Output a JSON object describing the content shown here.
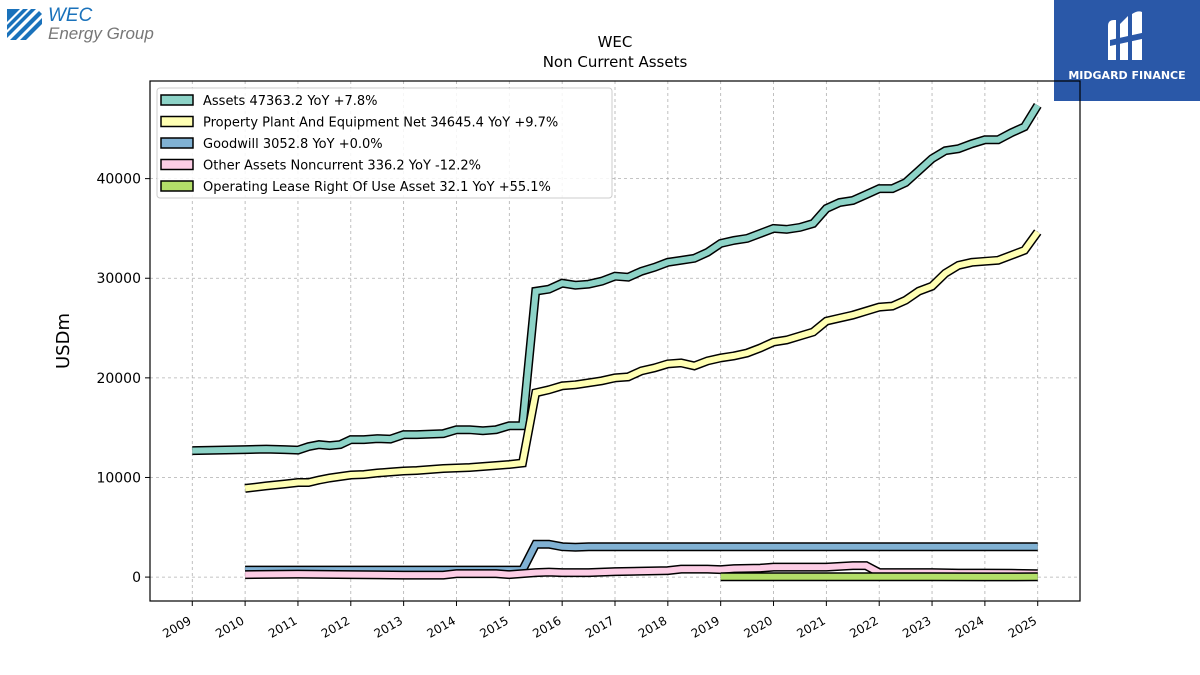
{
  "logos": {
    "wec_line1": "WEC",
    "wec_line2": "Energy Group",
    "midgard": "MIDGARD FINANCE"
  },
  "chart_data": {
    "type": "line",
    "title": "WEC",
    "subtitle": "Non Current  Assets",
    "ylabel": "USDm",
    "xlabel": "",
    "xlim": [
      2008.2,
      2025.8
    ],
    "ylim": [
      -2400,
      49800
    ],
    "yticks": [
      0,
      10000,
      20000,
      30000,
      40000
    ],
    "xticks": [
      "2009",
      "2010",
      "2011",
      "2012",
      "2013",
      "2014",
      "2015",
      "2016",
      "2017",
      "2018",
      "2019",
      "2020",
      "2021",
      "2022",
      "2023",
      "2024",
      "2025"
    ],
    "grid": true,
    "legend_position": "top-left",
    "series": [
      {
        "name": "Assets  47363.2 YoY +7.8%",
        "color": "#8dd3c7",
        "points": [
          [
            2009.0,
            12700
          ],
          [
            2009.5,
            12750
          ],
          [
            2010.0,
            12800
          ],
          [
            2010.4,
            12850
          ],
          [
            2010.75,
            12800
          ],
          [
            2011.0,
            12750
          ],
          [
            2011.2,
            13100
          ],
          [
            2011.4,
            13300
          ],
          [
            2011.6,
            13200
          ],
          [
            2011.8,
            13300
          ],
          [
            2012.0,
            13800
          ],
          [
            2012.25,
            13800
          ],
          [
            2012.5,
            13900
          ],
          [
            2012.75,
            13850
          ],
          [
            2013.0,
            14300
          ],
          [
            2013.25,
            14300
          ],
          [
            2013.5,
            14350
          ],
          [
            2013.75,
            14400
          ],
          [
            2014.0,
            14800
          ],
          [
            2014.25,
            14800
          ],
          [
            2014.5,
            14700
          ],
          [
            2014.75,
            14800
          ],
          [
            2015.0,
            15200
          ],
          [
            2015.25,
            15200
          ],
          [
            2015.5,
            28700
          ],
          [
            2015.75,
            28900
          ],
          [
            2016.0,
            29500
          ],
          [
            2016.25,
            29300
          ],
          [
            2016.5,
            29400
          ],
          [
            2016.75,
            29700
          ],
          [
            2017.0,
            30200
          ],
          [
            2017.25,
            30100
          ],
          [
            2017.5,
            30700
          ],
          [
            2017.75,
            31100
          ],
          [
            2018.0,
            31600
          ],
          [
            2018.25,
            31800
          ],
          [
            2018.5,
            32000
          ],
          [
            2018.75,
            32600
          ],
          [
            2019.0,
            33500
          ],
          [
            2019.25,
            33800
          ],
          [
            2019.5,
            34000
          ],
          [
            2019.75,
            34500
          ],
          [
            2020.0,
            35000
          ],
          [
            2020.25,
            34900
          ],
          [
            2020.5,
            35100
          ],
          [
            2020.75,
            35500
          ],
          [
            2021.0,
            37000
          ],
          [
            2021.25,
            37600
          ],
          [
            2021.5,
            37800
          ],
          [
            2021.75,
            38400
          ],
          [
            2022.0,
            39000
          ],
          [
            2022.25,
            39000
          ],
          [
            2022.5,
            39600
          ],
          [
            2022.75,
            40800
          ],
          [
            2023.0,
            42000
          ],
          [
            2023.25,
            42800
          ],
          [
            2023.5,
            43000
          ],
          [
            2023.75,
            43500
          ],
          [
            2024.0,
            43900
          ],
          [
            2024.25,
            43900
          ],
          [
            2024.5,
            44600
          ],
          [
            2024.75,
            45200
          ],
          [
            2025.0,
            47363
          ]
        ]
      },
      {
        "name": "Property Plant And Equipment Net  34645.4 YoY +9.7%",
        "color": "#ffffb3",
        "points": [
          [
            2010.0,
            8900
          ],
          [
            2010.4,
            9150
          ],
          [
            2010.75,
            9350
          ],
          [
            2011.0,
            9500
          ],
          [
            2011.2,
            9500
          ],
          [
            2011.4,
            9750
          ],
          [
            2011.6,
            9950
          ],
          [
            2011.8,
            10100
          ],
          [
            2012.0,
            10250
          ],
          [
            2012.25,
            10300
          ],
          [
            2012.5,
            10450
          ],
          [
            2012.75,
            10550
          ],
          [
            2013.0,
            10650
          ],
          [
            2013.25,
            10700
          ],
          [
            2013.5,
            10800
          ],
          [
            2013.75,
            10900
          ],
          [
            2014.0,
            10950
          ],
          [
            2014.25,
            11000
          ],
          [
            2014.5,
            11100
          ],
          [
            2014.75,
            11200
          ],
          [
            2015.0,
            11300
          ],
          [
            2015.25,
            11450
          ],
          [
            2015.5,
            18500
          ],
          [
            2015.75,
            18800
          ],
          [
            2016.0,
            19200
          ],
          [
            2016.25,
            19300
          ],
          [
            2016.5,
            19500
          ],
          [
            2016.75,
            19700
          ],
          [
            2017.0,
            20000
          ],
          [
            2017.25,
            20100
          ],
          [
            2017.5,
            20700
          ],
          [
            2017.75,
            21000
          ],
          [
            2018.0,
            21400
          ],
          [
            2018.25,
            21500
          ],
          [
            2018.5,
            21200
          ],
          [
            2018.75,
            21700
          ],
          [
            2019.0,
            22000
          ],
          [
            2019.25,
            22200
          ],
          [
            2019.5,
            22500
          ],
          [
            2019.75,
            23000
          ],
          [
            2020.0,
            23600
          ],
          [
            2020.25,
            23800
          ],
          [
            2020.5,
            24200
          ],
          [
            2020.75,
            24600
          ],
          [
            2021.0,
            25700
          ],
          [
            2021.25,
            26000
          ],
          [
            2021.5,
            26300
          ],
          [
            2021.75,
            26700
          ],
          [
            2022.0,
            27100
          ],
          [
            2022.25,
            27200
          ],
          [
            2022.5,
            27800
          ],
          [
            2022.75,
            28700
          ],
          [
            2023.0,
            29200
          ],
          [
            2023.25,
            30500
          ],
          [
            2023.5,
            31300
          ],
          [
            2023.75,
            31600
          ],
          [
            2024.0,
            31700
          ],
          [
            2024.25,
            31800
          ],
          [
            2024.5,
            32300
          ],
          [
            2024.75,
            32800
          ],
          [
            2025.0,
            34645
          ]
        ]
      },
      {
        "name": "Goodwill  3052.8 YoY +0.0%",
        "color": "#80b1d3",
        "points": [
          [
            2010.0,
            700
          ],
          [
            2015.25,
            700
          ],
          [
            2015.5,
            3300
          ],
          [
            2015.75,
            3300
          ],
          [
            2016.0,
            3050
          ],
          [
            2016.25,
            3000
          ],
          [
            2016.5,
            3053
          ],
          [
            2025.0,
            3053
          ]
        ]
      },
      {
        "name": "Other Assets Noncurrent  336.2 YoY -12.2%",
        "color": "#fccde5",
        "points": [
          [
            2010.0,
            250
          ],
          [
            2011.0,
            300
          ],
          [
            2012.0,
            250
          ],
          [
            2013.0,
            200
          ],
          [
            2013.75,
            200
          ],
          [
            2014.0,
            350
          ],
          [
            2014.75,
            350
          ],
          [
            2015.0,
            250
          ],
          [
            2015.5,
            450
          ],
          [
            2015.75,
            500
          ],
          [
            2016.0,
            450
          ],
          [
            2016.5,
            450
          ],
          [
            2017.0,
            550
          ],
          [
            2017.5,
            600
          ],
          [
            2018.0,
            650
          ],
          [
            2018.25,
            800
          ],
          [
            2018.75,
            800
          ],
          [
            2019.0,
            750
          ],
          [
            2019.25,
            850
          ],
          [
            2019.75,
            900
          ],
          [
            2020.0,
            1000
          ],
          [
            2020.5,
            1000
          ],
          [
            2021.0,
            1000
          ],
          [
            2021.5,
            1150
          ],
          [
            2021.75,
            1150
          ],
          [
            2022.0,
            450
          ],
          [
            2022.5,
            450
          ],
          [
            2023.0,
            450
          ],
          [
            2023.5,
            400
          ],
          [
            2024.0,
            400
          ],
          [
            2024.5,
            380
          ],
          [
            2025.0,
            336
          ]
        ]
      },
      {
        "name": "Operating Lease Right Of Use Asset  32.1 YoY +55.1%",
        "color": "#b3de69",
        "points": [
          [
            2019.0,
            25
          ],
          [
            2020.0,
            30
          ],
          [
            2021.0,
            28
          ],
          [
            2022.0,
            25
          ],
          [
            2023.0,
            25
          ],
          [
            2024.0,
            21
          ],
          [
            2025.0,
            32
          ]
        ]
      }
    ]
  }
}
